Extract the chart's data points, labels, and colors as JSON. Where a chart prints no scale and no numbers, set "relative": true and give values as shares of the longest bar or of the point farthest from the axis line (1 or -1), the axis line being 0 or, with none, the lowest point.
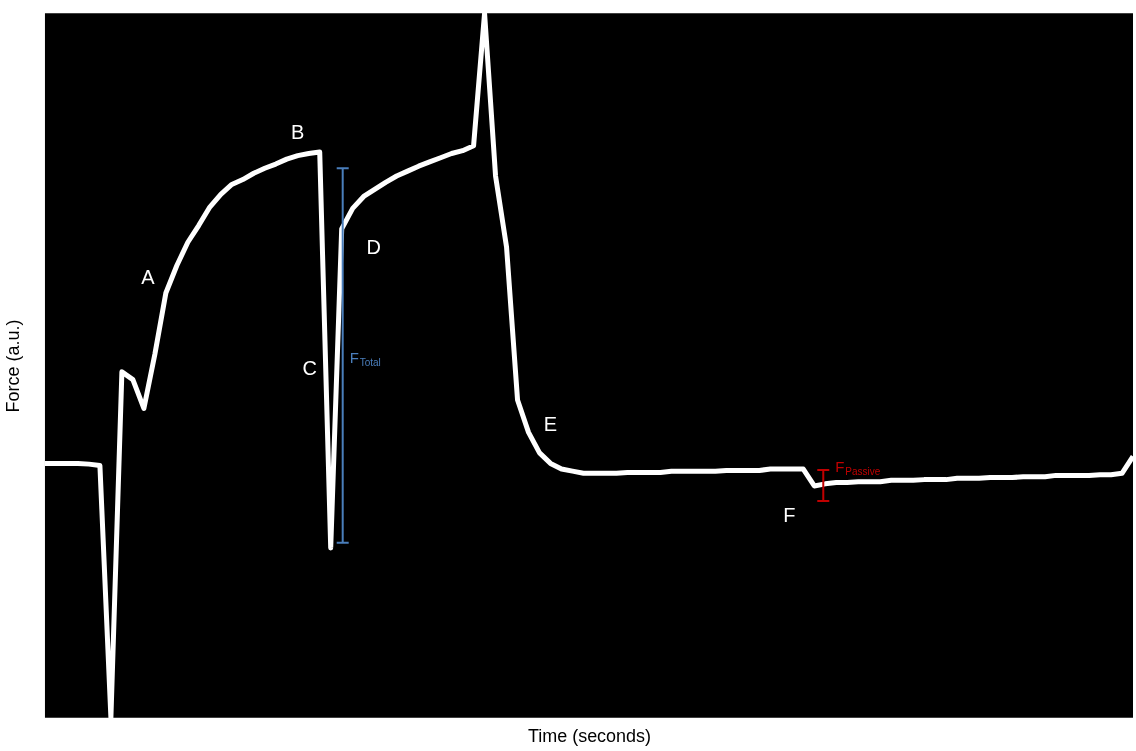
{
  "chart_data": {
    "type": "line",
    "relative": true,
    "xlabel": "Time (seconds)",
    "ylabel": "Force (a.u.)",
    "categories": [
      null,
      null,
      null,
      null,
      null,
      null,
      null,
      null,
      null,
      null,
      null,
      null,
      null,
      null,
      null,
      null,
      null,
      null,
      null,
      null,
      null,
      null,
      null,
      null,
      null,
      null,
      null,
      null,
      null,
      null,
      null,
      null,
      null,
      null,
      null,
      null,
      null,
      null,
      null,
      null,
      null,
      null,
      null,
      null,
      null,
      null,
      null,
      null,
      null,
      null,
      null,
      null,
      null,
      null,
      null,
      null,
      null,
      null,
      null,
      null,
      null,
      null,
      null,
      null,
      null,
      null,
      null,
      null,
      null,
      null,
      null,
      null,
      null,
      null,
      null,
      null,
      null,
      null,
      null,
      null,
      null,
      null,
      null,
      null,
      null,
      null,
      null,
      null,
      null,
      null,
      null,
      null,
      null,
      null,
      null,
      null,
      null,
      null,
      null,
      null
    ],
    "line_style": "solid",
    "series": [
      {
        "color": "#ffffff",
        "values": [
          0.361,
          0.361,
          0.361,
          0.361,
          0.36,
          0.358,
          0,
          0.491,
          0.48,
          0.439,
          0.516,
          0.603,
          0.642,
          0.675,
          0.699,
          0.725,
          0.743,
          0.757,
          0.764,
          0.773,
          0.78,
          0.786,
          0.793,
          0.798,
          0.801,
          0.803,
          0.241,
          0.694,
          0.723,
          0.74,
          0.75,
          0.76,
          0.769,
          0.776,
          0.783,
          0.789,
          0.795,
          0.801,
          0.805,
          0.812,
          1,
          0.769,
          0.668,
          0.451,
          0.405,
          0.376,
          0.361,
          0.353,
          0.35,
          0.347,
          0.347,
          0.347,
          0.347,
          0.348,
          0.348,
          0.348,
          0.348,
          0.35,
          0.35,
          0.35,
          0.35,
          0.35,
          0.351,
          0.351,
          0.351,
          0.351,
          0.353,
          0.353,
          0.353,
          0.353,
          0.329,
          0.332,
          0.334,
          0.334,
          0.335,
          0.335,
          0.335,
          0.337,
          0.337,
          0.337,
          0.338,
          0.338,
          0.338,
          0.34,
          0.34,
          0.34,
          0.341,
          0.341,
          0.341,
          0.342,
          0.342,
          0.342,
          0.344,
          0.344,
          0.344,
          0.344,
          0.345,
          0.345,
          0.347,
          0.371
        ]
      }
    ],
    "annotations": [
      "A",
      "B",
      "C",
      "D",
      "E",
      "F",
      "F$_{Total}$",
      "F$_{Passive}$"
    ]
  }
}
